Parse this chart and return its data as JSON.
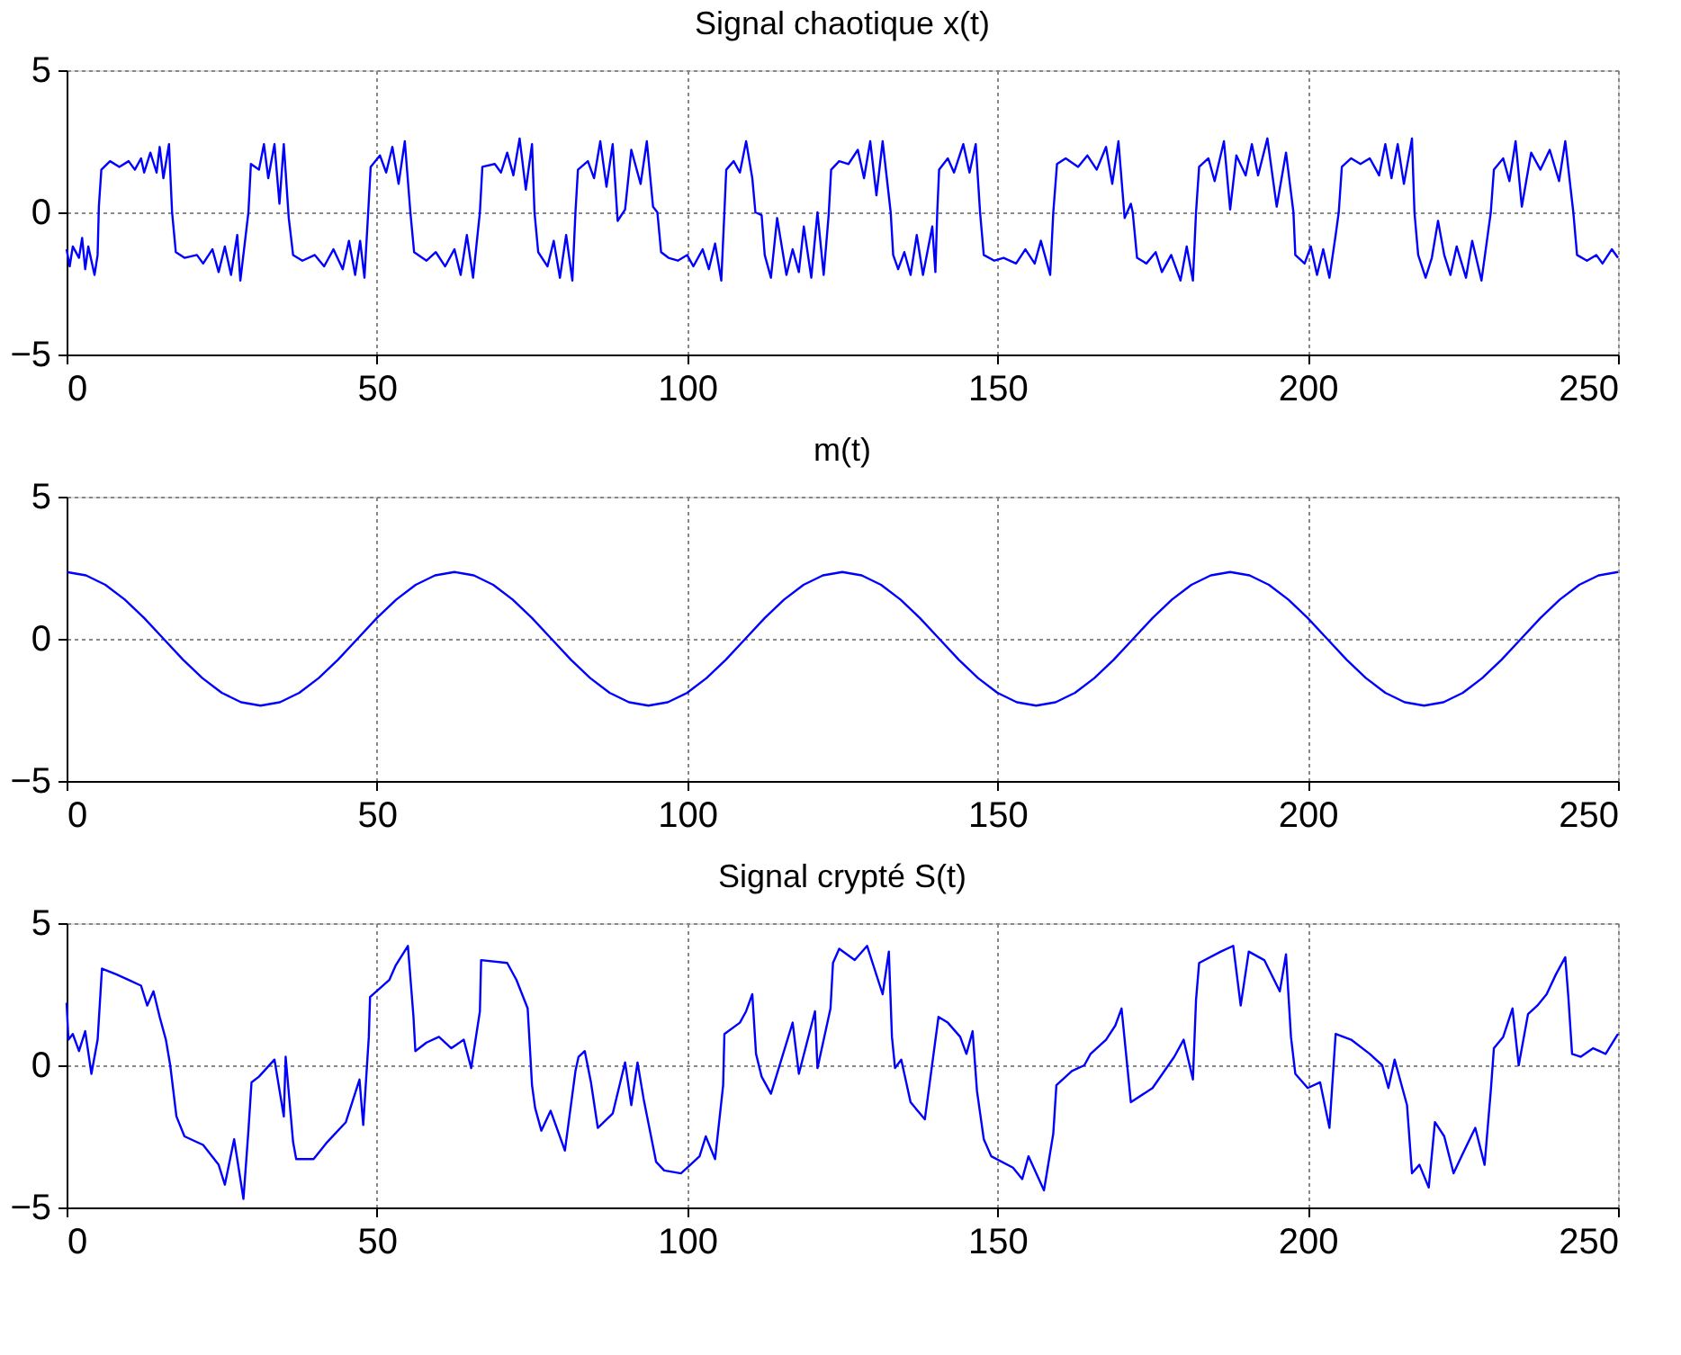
{
  "chart_data": [
    {
      "type": "line",
      "title": "Signal chaotique x(t)",
      "xlim": [
        0,
        250
      ],
      "ylim": [
        -5,
        5
      ],
      "xticks": [
        0,
        50,
        100,
        150,
        200,
        250
      ],
      "yticks": [
        -5,
        0,
        5
      ],
      "grid": true,
      "series": [
        {
          "color": "#0000ff",
          "x": [
            0,
            0.5,
            1,
            2,
            2.5,
            3,
            3.5,
            4.5,
            5,
            5.2,
            5.6,
            7,
            8.5,
            10,
            11,
            12,
            12.5,
            13.5,
            14.5,
            15,
            15.6,
            16.5,
            17,
            17.6,
            19,
            21,
            22,
            23.5,
            24.5,
            25.5,
            26.5,
            27.5,
            28,
            29.3,
            29.7,
            31,
            31.8,
            32.5,
            33.5,
            34.3,
            35,
            35.8,
            36.5,
            38,
            40,
            41.5,
            43,
            44.5,
            45.5,
            46.5,
            47.3,
            48,
            48.6,
            49,
            50.5,
            51.5,
            52.5,
            53.5,
            54.5,
            55.4,
            56,
            58,
            59.5,
            61,
            62.5,
            63.5,
            64.5,
            65.5,
            66.6,
            67,
            69,
            70,
            71,
            72,
            73,
            74,
            75,
            75.4,
            76,
            77.5,
            78.5,
            79.5,
            80.5,
            81.5,
            82,
            82.4,
            84,
            85,
            86,
            87,
            88,
            88.8,
            90,
            91,
            92.5,
            93.5,
            94.5,
            95.2,
            95.8,
            97,
            98.5,
            100,
            101,
            102.5,
            103.5,
            104.5,
            105.5,
            106,
            106.3,
            107.5,
            108.5,
            109.5,
            110.5,
            111,
            112,
            112.5,
            113.5,
            114.5,
            116,
            117,
            118,
            118.8,
            120,
            121,
            122,
            122.8,
            123.2,
            124.5,
            126,
            127.5,
            128.5,
            129.5,
            130.5,
            131.5,
            132.8,
            133.2,
            134,
            135,
            136,
            137,
            138,
            139.5,
            140,
            140.3,
            140.6,
            142,
            143,
            144.5,
            145.5,
            146.5,
            147.2,
            147.8,
            149.5,
            151,
            153,
            154.5,
            156,
            157,
            158.5,
            159,
            159.6,
            161,
            163,
            164.5,
            166,
            167.5,
            168.5,
            169.5,
            170.5,
            171.5,
            171.8,
            172.5,
            174,
            175.5,
            176.5,
            178,
            179.5,
            180.5,
            181.5,
            182,
            182.5,
            184,
            185,
            186.5,
            187.5,
            188.5,
            190,
            191,
            192,
            193.5,
            195,
            196.5,
            197.7,
            198,
            199.5,
            200.5,
            201.5,
            202.5,
            203.5,
            204.5,
            205,
            205.5,
            207,
            208.5,
            210,
            211.5,
            212.5,
            213.5,
            214.5,
            215.5,
            216.8,
            217.2,
            217.8,
            219,
            220,
            221,
            222,
            223,
            224,
            225.5,
            226.5,
            228,
            229.5,
            230,
            231.5,
            232.5,
            233.5,
            234.5,
            236,
            237.5,
            239,
            240.5,
            241.5,
            242.8,
            243.4,
            245,
            246.5,
            247.5,
            249,
            250
          ],
          "values": [
            -1.3,
            -1.9,
            -1.2,
            -1.6,
            -0.9,
            -2.0,
            -1.2,
            -2.2,
            -1.5,
            0.2,
            1.5,
            1.8,
            1.6,
            1.8,
            1.5,
            1.9,
            1.4,
            2.1,
            1.4,
            2.3,
            1.2,
            2.4,
            0,
            -1.4,
            -1.6,
            -1.5,
            -1.8,
            -1.3,
            -2.1,
            -1.2,
            -2.2,
            -0.8,
            -2.4,
            0,
            1.7,
            1.5,
            2.4,
            1.2,
            2.4,
            0.3,
            2.4,
            -0.2,
            -1.5,
            -1.7,
            -1.5,
            -1.9,
            -1.3,
            -2.0,
            -1.0,
            -2.2,
            -1.0,
            -2.3,
            0,
            1.6,
            2.0,
            1.4,
            2.3,
            1.0,
            2.5,
            0,
            -1.4,
            -1.7,
            -1.4,
            -1.9,
            -1.3,
            -2.2,
            -0.8,
            -2.3,
            0,
            1.6,
            1.7,
            1.4,
            2.1,
            1.3,
            2.6,
            0.8,
            2.4,
            0,
            -1.4,
            -1.9,
            -1.0,
            -2.3,
            -0.8,
            -2.4,
            0,
            1.5,
            1.8,
            1.2,
            2.5,
            0.9,
            2.4,
            -0.3,
            0.1,
            2.2,
            1.0,
            2.5,
            0.2,
            0,
            -1.4,
            -1.6,
            -1.7,
            -1.5,
            -1.9,
            -1.3,
            -2.0,
            -1.1,
            -2.4,
            0,
            1.5,
            1.8,
            1.4,
            2.5,
            1.2,
            0,
            -0.1,
            -1.5,
            -2.3,
            -0.2,
            -2.2,
            -1.3,
            -2.1,
            -0.5,
            -2.3,
            0,
            -2.2,
            -0.1,
            1.5,
            1.8,
            1.7,
            2.2,
            1.2,
            2.5,
            0.6,
            2.5,
            0,
            -1.5,
            -2.0,
            -1.4,
            -2.2,
            -0.8,
            -2.2,
            -0.5,
            -2.1,
            0,
            1.5,
            1.9,
            1.4,
            2.4,
            1.4,
            2.4,
            0,
            -1.5,
            -1.7,
            -1.6,
            -1.8,
            -1.3,
            -1.8,
            -1.0,
            -2.2,
            0,
            1.7,
            1.9,
            1.6,
            2.0,
            1.5,
            2.3,
            1.0,
            2.5,
            -0.2,
            0.3,
            0,
            -1.6,
            -1.8,
            -1.4,
            -2.1,
            -1.5,
            -2.4,
            -1.2,
            -2.4,
            0,
            1.6,
            1.9,
            1.1,
            2.5,
            0.1,
            2.0,
            1.3,
            2.4,
            1.3,
            2.6,
            0.2,
            2.1,
            0,
            -1.5,
            -1.8,
            -1.2,
            -2.2,
            -1.3,
            -2.3,
            -0.8,
            0,
            1.6,
            1.9,
            1.7,
            1.9,
            1.3,
            2.4,
            1.2,
            2.4,
            1.0,
            2.6,
            0,
            -1.5,
            -2.3,
            -1.6,
            -0.3,
            -1.5,
            -2.2,
            -1.2,
            -2.3,
            -1.0,
            -2.4,
            0,
            1.5,
            1.9,
            1.1,
            2.5,
            0.2,
            2.1,
            1.5,
            2.2,
            1.1,
            2.5,
            0,
            -1.5,
            -1.7,
            -1.5,
            -1.8,
            -1.3,
            -1.6
          ]
        }
      ]
    },
    {
      "type": "line",
      "title": "m(t)",
      "xlim": [
        0,
        250
      ],
      "ylim": [
        -5,
        5
      ],
      "xticks": [
        0,
        50,
        100,
        150,
        200,
        250
      ],
      "yticks": [
        -5,
        0,
        5
      ],
      "grid": true,
      "series": [
        {
          "color": "#0000ff",
          "x": [
            0,
            3.125,
            6.25,
            9.375,
            12.5,
            15.625,
            18.75,
            21.875,
            25,
            28.125,
            31.25,
            34.375,
            37.5,
            40.625,
            43.75,
            46.875,
            50,
            53.125,
            56.25,
            59.375,
            62.5,
            65.625,
            68.75,
            71.875,
            75,
            78.125,
            81.25,
            84.375,
            87.5,
            90.625,
            93.75,
            96.875,
            100,
            103.125,
            106.25,
            109.375,
            112.5,
            115.625,
            118.75,
            121.875,
            125,
            128.125,
            131.25,
            134.375,
            137.5,
            140.625,
            143.75,
            146.875,
            150,
            153.125,
            156.25,
            159.375,
            162.5,
            165.625,
            168.75,
            171.875,
            175,
            178.125,
            181.25,
            184.375,
            187.5,
            190.625,
            193.75,
            196.875,
            200,
            203.125,
            206.25,
            209.375,
            212.5,
            215.625,
            218.75,
            221.875,
            225,
            228.125,
            231.25,
            234.375,
            237.5,
            240.625,
            243.75,
            246.875,
            250
          ],
          "values": [
            2.35,
            2.23,
            1.9,
            1.38,
            0.73,
            0,
            -0.73,
            -1.38,
            -1.9,
            -2.23,
            -2.35,
            -2.23,
            -1.9,
            -1.38,
            -0.73,
            0,
            0.73,
            1.38,
            1.9,
            2.23,
            2.35,
            2.23,
            1.9,
            1.38,
            0.73,
            0,
            -0.73,
            -1.38,
            -1.9,
            -2.23,
            -2.35,
            -2.23,
            -1.9,
            -1.38,
            -0.73,
            0,
            0.73,
            1.38,
            1.9,
            2.23,
            2.35,
            2.23,
            1.9,
            1.38,
            0.73,
            0,
            -0.73,
            -1.38,
            -1.9,
            -2.23,
            -2.35,
            -2.23,
            -1.9,
            -1.38,
            -0.73,
            0,
            0.73,
            1.38,
            1.9,
            2.23,
            2.35,
            2.23,
            1.9,
            1.38,
            0.73,
            0,
            -0.73,
            -1.38,
            -1.9,
            -2.23,
            -2.35,
            -2.23,
            -1.9,
            -1.38,
            -0.73,
            0,
            0.73,
            1.38,
            1.9,
            2.23,
            2.35
          ]
        }
      ]
    },
    {
      "type": "line",
      "title": "Signal crypté S(t)",
      "xlim": [
        0,
        250
      ],
      "ylim": [
        -5,
        5
      ],
      "xticks": [
        0,
        50,
        100,
        150,
        200,
        250
      ],
      "yticks": [
        -5,
        0,
        5
      ],
      "grid": true,
      "series": [
        {
          "color": "#0000ff",
          "x": [
            0,
            0.3,
            1,
            2,
            3,
            4,
            5,
            5.7,
            8,
            10,
            12,
            13,
            14,
            15,
            16,
            16.7,
            17.7,
            19,
            22,
            24.5,
            25.5,
            27,
            28.5,
            29.3,
            29.8,
            31,
            33.5,
            35,
            35.3,
            36.5,
            37,
            39.8,
            42,
            45,
            47.2,
            47.8,
            48.7,
            48.9,
            52,
            53,
            55,
            55.9,
            56.2,
            58,
            60,
            62,
            64,
            65.2,
            66.6,
            66.8,
            71,
            72.5,
            74.3,
            75,
            75.5,
            76.5,
            78,
            80.3,
            82,
            82.5,
            83.5,
            84.5,
            85.6,
            88,
            90,
            91,
            92,
            93,
            95,
            96.3,
            99,
            100,
            102,
            103,
            104.5,
            105.8,
            106,
            108.5,
            109.5,
            110.5,
            111.1,
            112,
            113.5,
            117,
            118,
            120.6,
            121,
            123.1,
            123.5,
            124.5,
            127,
            129,
            131.5,
            132.5,
            133,
            133.5,
            134.5,
            136,
            138.3,
            140.5,
            142,
            144,
            145,
            146,
            146.7,
            147.8,
            149,
            152.5,
            154,
            155,
            157.5,
            159,
            159.5,
            162,
            164,
            165,
            167.5,
            169,
            170,
            171.5,
            175,
            178.5,
            180,
            181.5,
            182,
            182.5,
            186,
            188,
            189.2,
            190.5,
            193,
            195.5,
            196.5,
            197.3,
            198,
            200,
            202,
            203.5,
            204.5,
            207,
            210,
            212,
            213,
            214,
            216,
            216.8,
            218,
            219.5,
            220.5,
            222,
            223.5,
            225,
            227,
            228.5,
            229.5,
            230,
            231.5,
            233,
            234,
            235.5,
            237,
            238.5,
            240,
            241.5,
            242,
            242.6,
            244,
            246,
            248,
            250
          ],
          "values": [
            2.2,
            0.9,
            1.1,
            0.5,
            1.2,
            -0.3,
            0.9,
            3.4,
            3.2,
            3.0,
            2.8,
            2.1,
            2.6,
            1.7,
            0.9,
            0,
            -1.8,
            -2.5,
            -2.8,
            -3.5,
            -4.2,
            -2.6,
            -4.7,
            -2.3,
            -0.6,
            -0.4,
            0.2,
            -1.8,
            0.3,
            -2.7,
            -3.3,
            -3.3,
            -2.7,
            -2.0,
            -0.5,
            -2.1,
            1.0,
            2.4,
            3.0,
            3.5,
            4.2,
            1.7,
            0.5,
            0.8,
            1.0,
            0.6,
            0.9,
            -0.1,
            1.9,
            3.7,
            3.6,
            3.0,
            2.0,
            -0.7,
            -1.5,
            -2.3,
            -1.6,
            -3.0,
            -0.2,
            0.3,
            0.5,
            -0.6,
            -2.2,
            -1.7,
            0.1,
            -1.4,
            0.1,
            -1.2,
            -3.4,
            -3.7,
            -3.8,
            -3.6,
            -3.2,
            -2.5,
            -3.3,
            -0.7,
            1.1,
            1.5,
            1.9,
            2.5,
            0.4,
            -0.4,
            -1.0,
            1.5,
            -0.3,
            1.9,
            -0.1,
            2.0,
            3.6,
            4.1,
            3.7,
            4.2,
            2.5,
            4.0,
            1.0,
            -0.1,
            0.2,
            -1.3,
            -1.9,
            1.7,
            1.5,
            1.0,
            0.4,
            1.2,
            -0.9,
            -2.6,
            -3.2,
            -3.6,
            -4.0,
            -3.2,
            -4.4,
            -2.4,
            -0.7,
            -0.2,
            0,
            0.4,
            0.9,
            1.4,
            2.0,
            -1.3,
            -0.8,
            0.3,
            0.9,
            -0.5,
            2.3,
            3.6,
            4.0,
            4.2,
            2.1,
            4.0,
            3.7,
            2.6,
            3.9,
            1.0,
            -0.3,
            -0.8,
            -0.6,
            -2.2,
            1.1,
            0.9,
            0.4,
            0,
            -0.8,
            0.2,
            -1.4,
            -3.8,
            -3.5,
            -4.3,
            -2.0,
            -2.5,
            -3.8,
            -3.1,
            -2.2,
            -3.5,
            -0.9,
            0.6,
            1.0,
            2.0,
            0,
            1.8,
            2.1,
            2.5,
            3.2,
            3.8,
            2.4,
            0.4,
            0.3,
            0.6,
            0.4,
            1.1
          ]
        }
      ]
    }
  ]
}
